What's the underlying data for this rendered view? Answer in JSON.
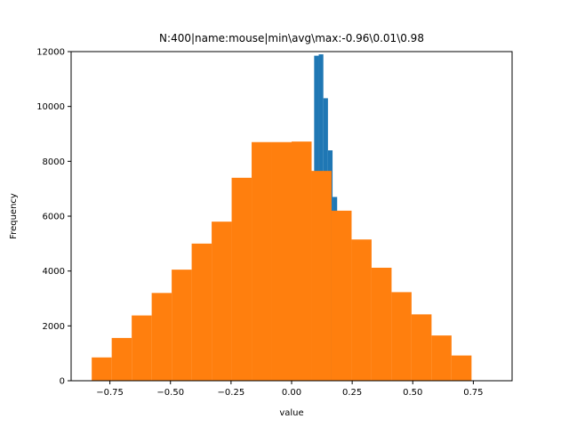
{
  "chart_data": {
    "type": "bar",
    "title": "N:400|name:mouse|min\\avg\\max:-0.96\\0.01\\0.98",
    "xlabel": "value",
    "ylabel": "Frequency",
    "xlim": [
      -0.91,
      0.91
    ],
    "ylim": [
      0,
      12000
    ],
    "x_ticks": [
      -0.75,
      -0.5,
      -0.25,
      0.0,
      0.25,
      0.5,
      0.75
    ],
    "x_tick_labels": [
      "−0.75",
      "−0.50",
      "−0.25",
      "0.00",
      "0.25",
      "0.50",
      "0.75"
    ],
    "y_ticks": [
      0,
      2000,
      4000,
      6000,
      8000,
      10000,
      12000
    ],
    "y_tick_labels": [
      "0",
      "2000",
      "4000",
      "6000",
      "8000",
      "10000",
      "12000"
    ],
    "grid": false,
    "series": [
      {
        "color": "#1f77b4",
        "bins": [
          {
            "x0": 0.093,
            "x1": 0.112,
            "value": 11850
          },
          {
            "x0": 0.112,
            "x1": 0.131,
            "value": 11900
          },
          {
            "x0": 0.131,
            "x1": 0.15,
            "value": 10300
          },
          {
            "x0": 0.15,
            "x1": 0.169,
            "value": 8400
          },
          {
            "x0": 0.169,
            "x1": 0.188,
            "value": 6700
          }
        ]
      },
      {
        "color": "#ff7f0e",
        "bins": [
          {
            "x0": -0.825,
            "x1": -0.7425,
            "value": 850
          },
          {
            "x0": -0.7425,
            "x1": -0.66,
            "value": 1560
          },
          {
            "x0": -0.66,
            "x1": -0.5775,
            "value": 2380
          },
          {
            "x0": -0.5775,
            "x1": -0.495,
            "value": 3200
          },
          {
            "x0": -0.495,
            "x1": -0.4125,
            "value": 4050
          },
          {
            "x0": -0.4125,
            "x1": -0.33,
            "value": 5000
          },
          {
            "x0": -0.33,
            "x1": -0.2475,
            "value": 5800
          },
          {
            "x0": -0.2475,
            "x1": -0.165,
            "value": 7400
          },
          {
            "x0": -0.165,
            "x1": -0.0825,
            "value": 8700
          },
          {
            "x0": -0.0825,
            "x1": 0.0,
            "value": 8700
          },
          {
            "x0": 0.0,
            "x1": 0.0825,
            "value": 8720
          },
          {
            "x0": 0.0825,
            "x1": 0.165,
            "value": 7650
          },
          {
            "x0": 0.165,
            "x1": 0.2475,
            "value": 6200
          },
          {
            "x0": 0.2475,
            "x1": 0.33,
            "value": 5150
          },
          {
            "x0": 0.33,
            "x1": 0.4125,
            "value": 4120
          },
          {
            "x0": 0.4125,
            "x1": 0.495,
            "value": 3230
          },
          {
            "x0": 0.495,
            "x1": 0.5775,
            "value": 2420
          },
          {
            "x0": 0.5775,
            "x1": 0.66,
            "value": 1650
          },
          {
            "x0": 0.66,
            "x1": 0.7425,
            "value": 920
          }
        ]
      }
    ]
  }
}
